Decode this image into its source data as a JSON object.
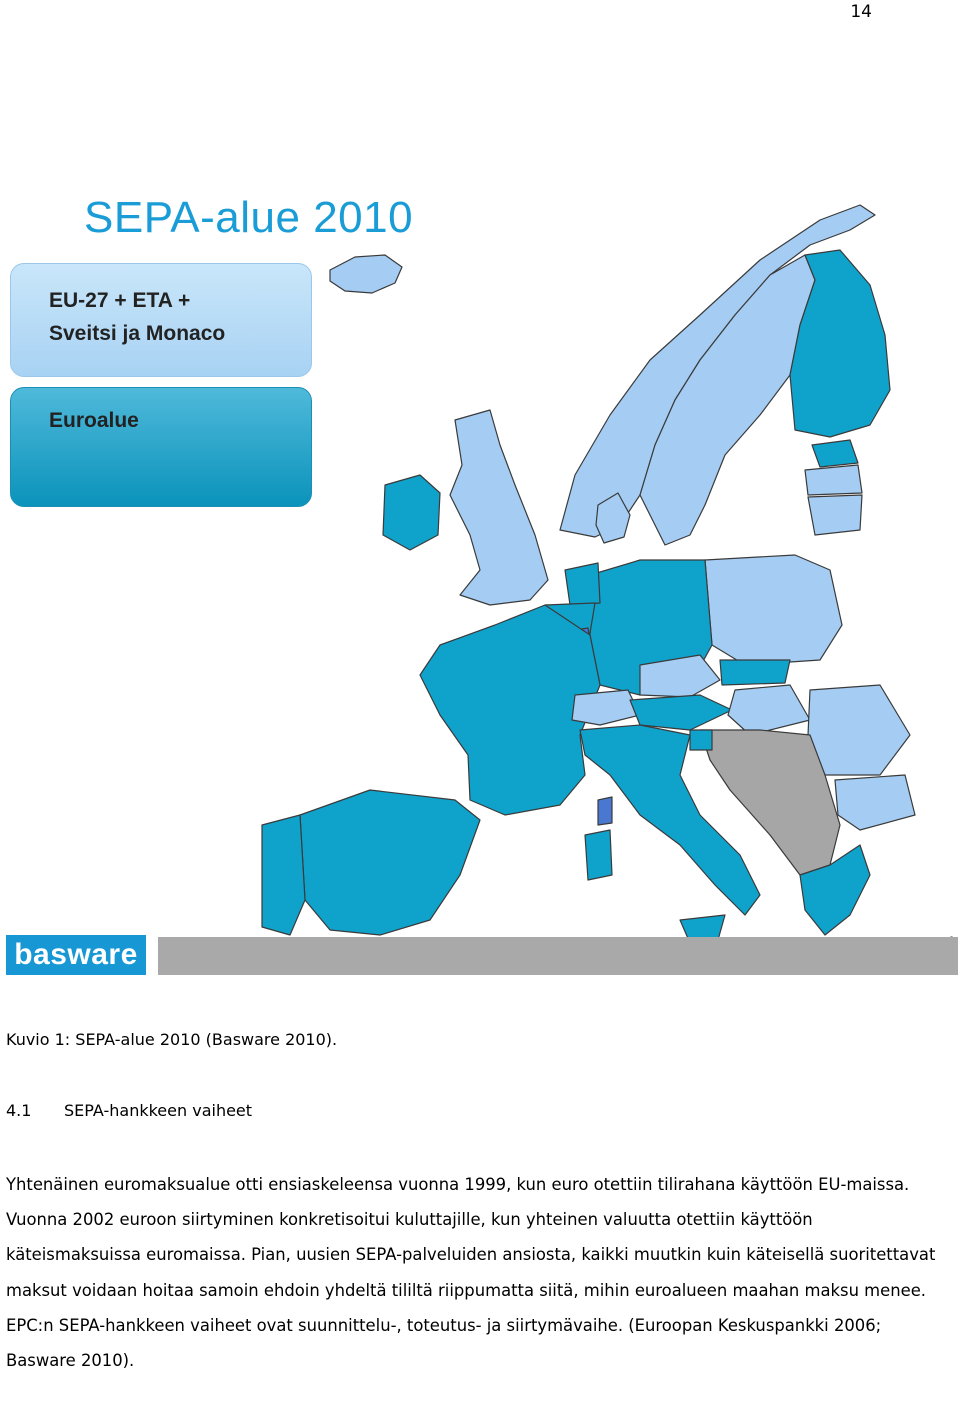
{
  "page": {
    "number": "14"
  },
  "figure": {
    "map_title": "SEPA-alue 2010",
    "legend": {
      "eu_line1": "EU-27 + ETA +",
      "eu_line2": "Sveitsi ja Monaco",
      "euro": "Euroalue"
    },
    "brand": "basware",
    "colors": {
      "eu_eta": "#a5cdf4",
      "euro_area": "#0fa3cc",
      "non_sepa": "#a6a6a6",
      "title": "#1a9cd6"
    }
  },
  "caption": "Kuvio 1: SEPA-alue 2010 (Basware 2010).",
  "section": {
    "number": "4.1",
    "title": "SEPA-hankkeen vaiheet"
  },
  "paragraph": "Yhtenäinen euromaksualue otti ensiaskeleensa vuonna 1999, kun euro otettiin tilirahana käyttöön EU-maissa. Vuonna 2002 euroon siirtyminen konkretisoitui kuluttajille, kun yhteinen valuutta otettiin käyttöön käteismaksuissa euromaissa. Pian, uusien SEPA-palveluiden ansiosta, kaikki muutkin kuin käteisellä suoritettavat maksut voidaan hoitaa samoin ehdoin yhdeltä tililtä riippumatta siitä, mihin euroalueen maahan maksu menee. EPC:n SEPA-hankkeen vaiheet ovat suunnittelu-, toteutus- ja siirtymävaihe. (Euroopan Keskuspankki 2006; Basware 2010)."
}
